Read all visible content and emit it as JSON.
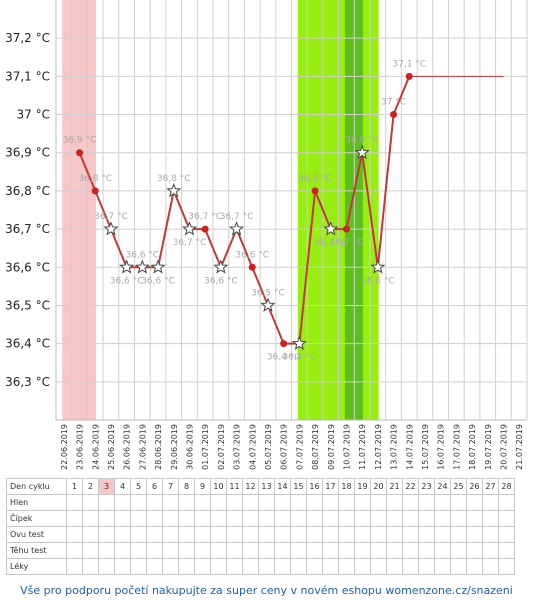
{
  "chart_data": {
    "type": "line",
    "y_ticks": [
      "36,3 °C",
      "36,4 °C",
      "36,5 °C",
      "36,6 °C",
      "36,7 °C",
      "36,8 °C",
      "36,9 °C",
      "37 °C",
      "37,1 °C",
      "37,2 °C"
    ],
    "y_tick_values": [
      36.3,
      36.4,
      36.5,
      36.6,
      36.7,
      36.8,
      36.9,
      37.0,
      37.1,
      37.2
    ],
    "ylim": [
      36.2,
      37.3
    ],
    "dates": [
      "22.06.2019",
      "23.06.2019",
      "24.06.2019",
      "25.06.2019",
      "26.06.2019",
      "27.06.2019",
      "28.06.2019",
      "29.06.2019",
      "30.06.2019",
      "01.07.2019",
      "02.07.2019",
      "03.07.2019",
      "04.07.2019",
      "05.07.2019",
      "06.07.2019",
      "07.07.2019",
      "08.07.2019",
      "09.07.2019",
      "10.07.2019",
      "11.07.2019",
      "12.07.2019",
      "13.07.2019",
      "14.07.2019",
      "15.07.2019",
      "16.07.2019",
      "17.07.2019",
      "18.07.2019",
      "19.07.2019",
      "20.07.2019",
      "21.07.2019"
    ],
    "points": [
      {
        "x": "23.06.2019",
        "y": 36.9,
        "marker": "dot",
        "label": "36,9 °C"
      },
      {
        "x": "24.06.2019",
        "y": 36.8,
        "marker": "dot",
        "label": "36,8 °C"
      },
      {
        "x": "25.06.2019",
        "y": 36.7,
        "marker": "star",
        "label": "36,7 °C"
      },
      {
        "x": "26.06.2019",
        "y": 36.6,
        "marker": "star",
        "label": "36,6 °C"
      },
      {
        "x": "27.06.2019",
        "y": 36.6,
        "marker": "star",
        "label": "36,6 °C"
      },
      {
        "x": "28.06.2019",
        "y": 36.6,
        "marker": "star",
        "label": "36,6 °C"
      },
      {
        "x": "29.06.2019",
        "y": 36.8,
        "marker": "star",
        "label": "36,8 °C"
      },
      {
        "x": "30.06.2019",
        "y": 36.7,
        "marker": "star",
        "label": "36,7 °C"
      },
      {
        "x": "01.07.2019",
        "y": 36.7,
        "marker": "dot",
        "label": "36,7 °C"
      },
      {
        "x": "02.07.2019",
        "y": 36.6,
        "marker": "star",
        "label": "36,6 °C"
      },
      {
        "x": "03.07.2019",
        "y": 36.7,
        "marker": "star",
        "label": "36,7 °C"
      },
      {
        "x": "04.07.2019",
        "y": 36.6,
        "marker": "dot",
        "label": "36,6 °C"
      },
      {
        "x": "05.07.2019",
        "y": 36.5,
        "marker": "star",
        "label": "36,5 °C"
      },
      {
        "x": "06.07.2019",
        "y": 36.4,
        "marker": "dot",
        "label": "36,4 °C"
      },
      {
        "x": "07.07.2019",
        "y": 36.4,
        "marker": "star",
        "label": "36,4 °C"
      },
      {
        "x": "08.07.2019",
        "y": 36.8,
        "marker": "dot",
        "label": "36,8 °C"
      },
      {
        "x": "09.07.2019",
        "y": 36.7,
        "marker": "star",
        "label": "36,7 °C"
      },
      {
        "x": "10.07.2019",
        "y": 36.7,
        "marker": "dot",
        "label": "36,7 °C"
      },
      {
        "x": "11.07.2019",
        "y": 36.9,
        "marker": "star",
        "label": "36,9 °C"
      },
      {
        "x": "12.07.2019",
        "y": 36.6,
        "marker": "star",
        "label": "36,6 °C"
      },
      {
        "x": "13.07.2019",
        "y": 37.0,
        "marker": "dot",
        "label": "37 °C"
      },
      {
        "x": "14.07.2019",
        "y": 37.1,
        "marker": "dot",
        "label": "37,1 °C"
      }
    ],
    "trend_line": {
      "from": "14.07.2019",
      "to": "20.07.2019",
      "y": 37.1
    },
    "bands": [
      {
        "from": "22.06.2019",
        "to": "24.06.2019",
        "color": "#f7c6c6"
      },
      {
        "from": "07.07.2019",
        "to": "12.07.2019",
        "color": "#99ee11"
      },
      {
        "from": "10.07.2019",
        "to": "11.07.2019",
        "color": "#5cbf1c"
      }
    ],
    "colors": {
      "line": "#c0393b",
      "dot": "#d01f1f",
      "star_fill": "#ffffff",
      "star_stroke": "#444444"
    },
    "grid": true
  },
  "cycle_table": {
    "row_labels": [
      "Den cyklu",
      "Hlen",
      "Čípek",
      "Ovu test",
      "Těhu test",
      "Léky"
    ],
    "days": [
      "1",
      "2",
      "3",
      "4",
      "5",
      "6",
      "7",
      "8",
      "9",
      "10",
      "11",
      "12",
      "13",
      "14",
      "15",
      "16",
      "17",
      "18",
      "19",
      "20",
      "21",
      "22",
      "23",
      "24",
      "25",
      "26",
      "27",
      "28"
    ],
    "highlight_day": "3"
  },
  "footer": {
    "text": "Vše pro podporu početí nakupujte za super ceny v novém eshopu womenzone.cz/snazeni"
  }
}
